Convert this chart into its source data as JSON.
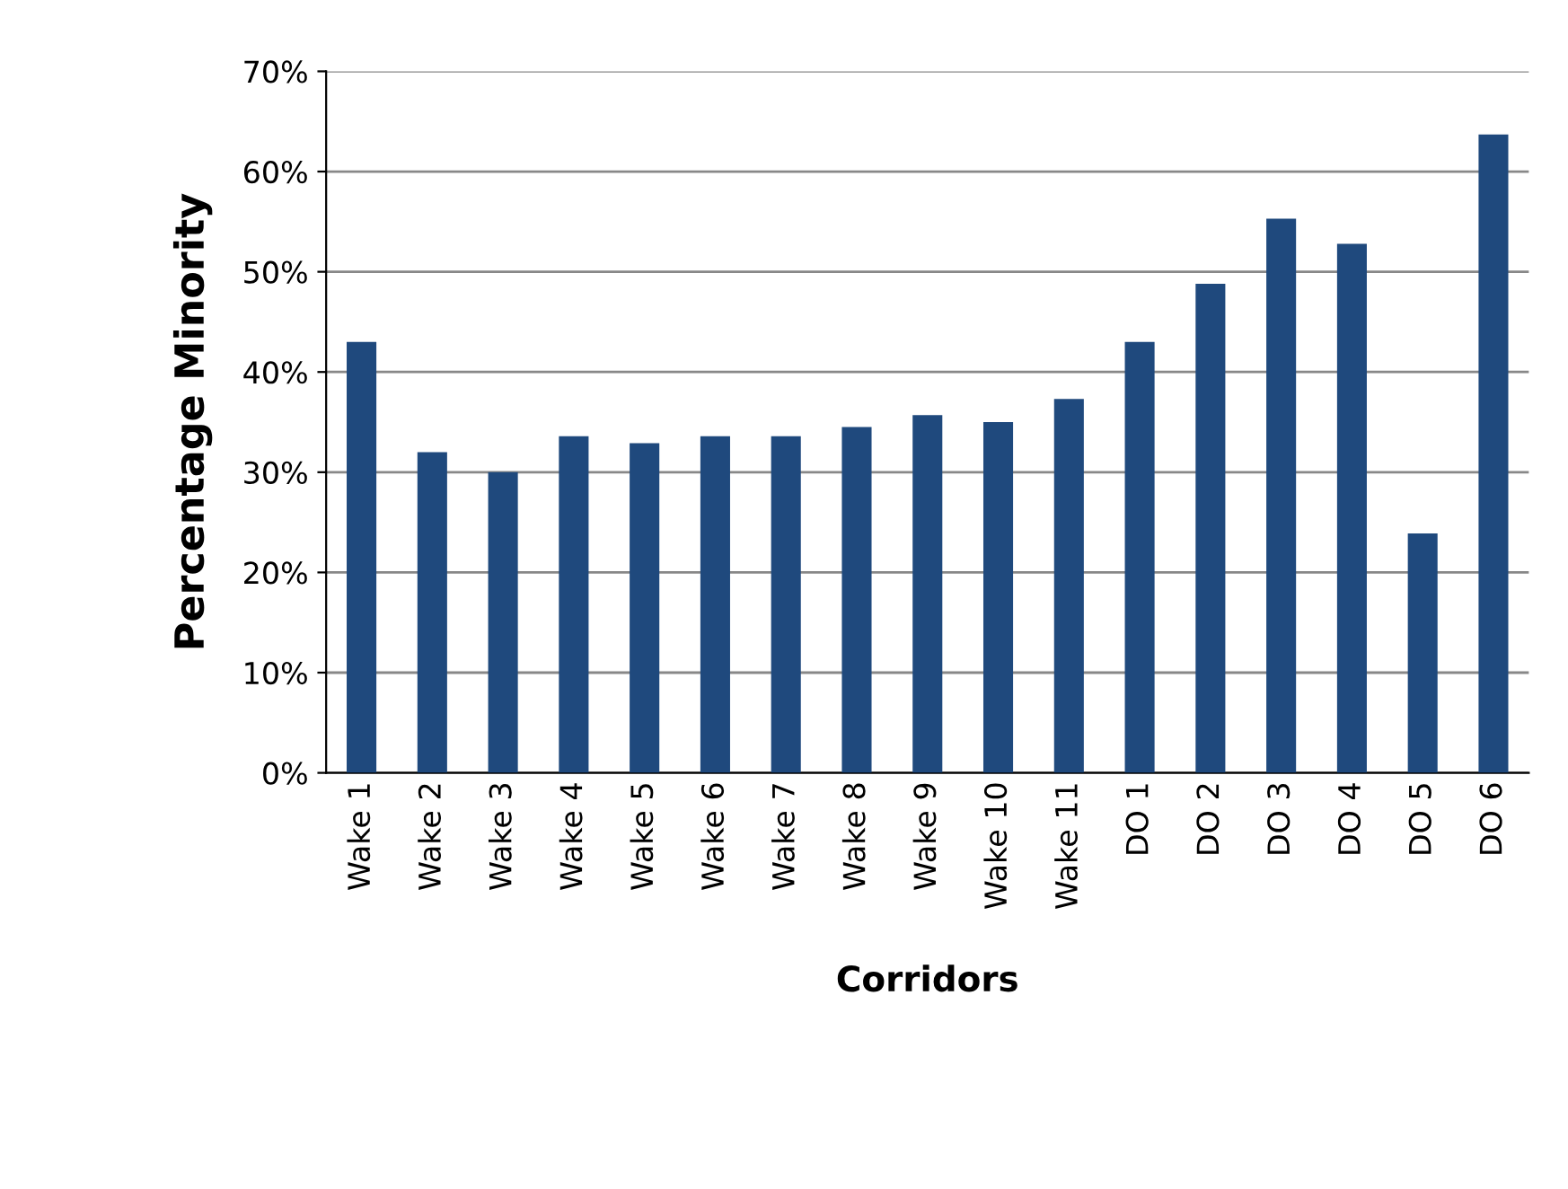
{
  "chart_data": {
    "type": "bar",
    "xlabel": "Corridors",
    "ylabel": "Percentage Minority",
    "categories": [
      "Wake 1",
      "Wake 2",
      "Wake 3",
      "Wake 4",
      "Wake 5",
      "Wake 6",
      "Wake 7",
      "Wake 8",
      "Wake 9",
      "Wake 10",
      "Wake 11",
      "DO 1",
      "DO 2",
      "DO 3",
      "DO 4",
      "DO 5",
      "DO 6"
    ],
    "values": [
      43,
      32,
      30,
      33.6,
      32.9,
      33.6,
      33.6,
      34.5,
      35.7,
      35,
      37.3,
      43,
      48.8,
      55.3,
      52.8,
      23.9,
      63.7
    ],
    "color": "#1f497d",
    "ylim": [
      0,
      70
    ],
    "yticks": [
      {
        "value": 0,
        "label": "0%"
      },
      {
        "value": 10,
        "label": "10%"
      },
      {
        "value": 20,
        "label": "20%"
      },
      {
        "value": 30,
        "label": "30%"
      },
      {
        "value": 40,
        "label": "40%"
      },
      {
        "value": 50,
        "label": "50%"
      },
      {
        "value": 60,
        "label": "60%"
      },
      {
        "value": 70,
        "label": "70%"
      }
    ],
    "grid": "y",
    "legend": false
  }
}
